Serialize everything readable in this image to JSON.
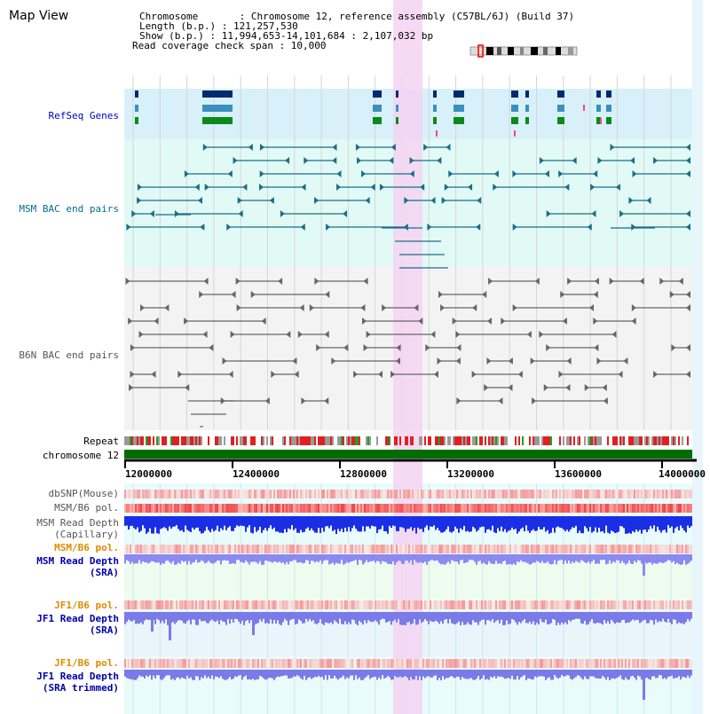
{
  "page_title": "Map View",
  "info": {
    "line1": "Chromosome       : Chromosome 12, reference assembly (C57BL/6J) (Build 37)",
    "line2": "Length (b.p.) : 121,257,530",
    "line3": "Show (b.p.) : 11,994,653-14,101,684 : 2,107,032 bp",
    "line4": "Read coverage check span : 10,000"
  },
  "tracks": {
    "refseq": "RefSeq Genes",
    "msm_bac": "MSM BAC end pairs",
    "b6n_bac": "B6N BAC end pairs",
    "repeat": "Repeat",
    "chromosome": "chromosome 12",
    "dbsnp": "dbSNP(Mouse)",
    "msm_b6_pol_1": "MSM/B6 pol.",
    "msm_depth_cap_1": "MSM Read Depth",
    "msm_depth_cap_2": "(Capillary)",
    "msm_b6_pol_2": "MSM/B6 pol.",
    "msm_depth_sra_1": "MSM Read Depth",
    "msm_depth_sra_2": "(SRA)",
    "jf1_b6_pol_1": "JF1/B6 pol.",
    "jf1_depth_sra_1": "JF1 Read Depth",
    "jf1_depth_sra_2": "(SRA)",
    "jf1_b6_pol_2": "JF1/B6 pol.",
    "jf1_depth_trim_1": "JF1 Read Depth",
    "jf1_depth_trim_2": "(SRA trimmed)"
  },
  "axis": {
    "ticks": [
      "12000000",
      "12400000",
      "12800000",
      "13200000",
      "13600000",
      "14000000"
    ]
  },
  "colors": {
    "refseq_bg": "#d8f0fa",
    "msm_bg": "#e2faf6",
    "b6n_bg": "#f3f3f3",
    "highlight": "#f5d3f2",
    "chromosome_bar": "#006d00",
    "refseq_label": "#0000cc",
    "msm_label": "#006f90",
    "b6n_label": "#555555",
    "pol_label": "#e08a00",
    "depth_label": "#0000aa"
  }
}
